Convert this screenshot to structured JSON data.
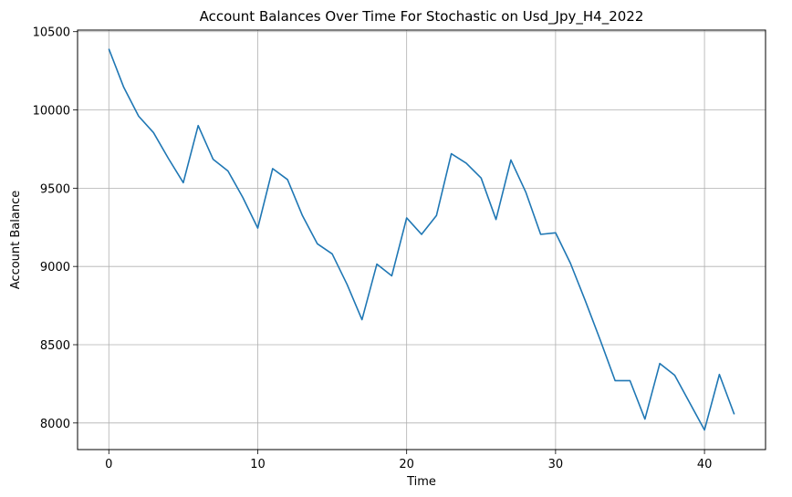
{
  "chart_data": {
    "type": "line",
    "title": "Account Balances Over Time For Stochastic on Usd_Jpy_H4_2022",
    "xlabel": "Time",
    "ylabel": "Account Balance",
    "xlim": [
      -2.1,
      44.1
    ],
    "ylim": [
      7830,
      10510
    ],
    "xticks": [
      0,
      10,
      20,
      30,
      40
    ],
    "yticks": [
      8000,
      8500,
      9000,
      9500,
      10000,
      10500
    ],
    "grid": true,
    "line_color": "#1f77b4",
    "series": [
      {
        "x": [
          0,
          1,
          2,
          3,
          4,
          5,
          6,
          7,
          8,
          9,
          10,
          11,
          12,
          13,
          14,
          15,
          16,
          17,
          18,
          19,
          20,
          21,
          22,
          23,
          24,
          25,
          26,
          27,
          28,
          29,
          30,
          31,
          32,
          33,
          34,
          35,
          36,
          37,
          38,
          39,
          40,
          41,
          42
        ],
        "values": [
          10390,
          10145,
          9960,
          9855,
          9690,
          9535,
          9900,
          9685,
          9610,
          9440,
          9245,
          9625,
          9555,
          9325,
          9145,
          9080,
          8885,
          8660,
          9015,
          8940,
          9310,
          9205,
          9325,
          9720,
          9660,
          9565,
          9300,
          9680,
          9475,
          9205,
          9215,
          9020,
          8780,
          8530,
          8270,
          8270,
          8025,
          8380,
          8305,
          8130,
          7955,
          8310,
          8055
        ]
      }
    ]
  }
}
